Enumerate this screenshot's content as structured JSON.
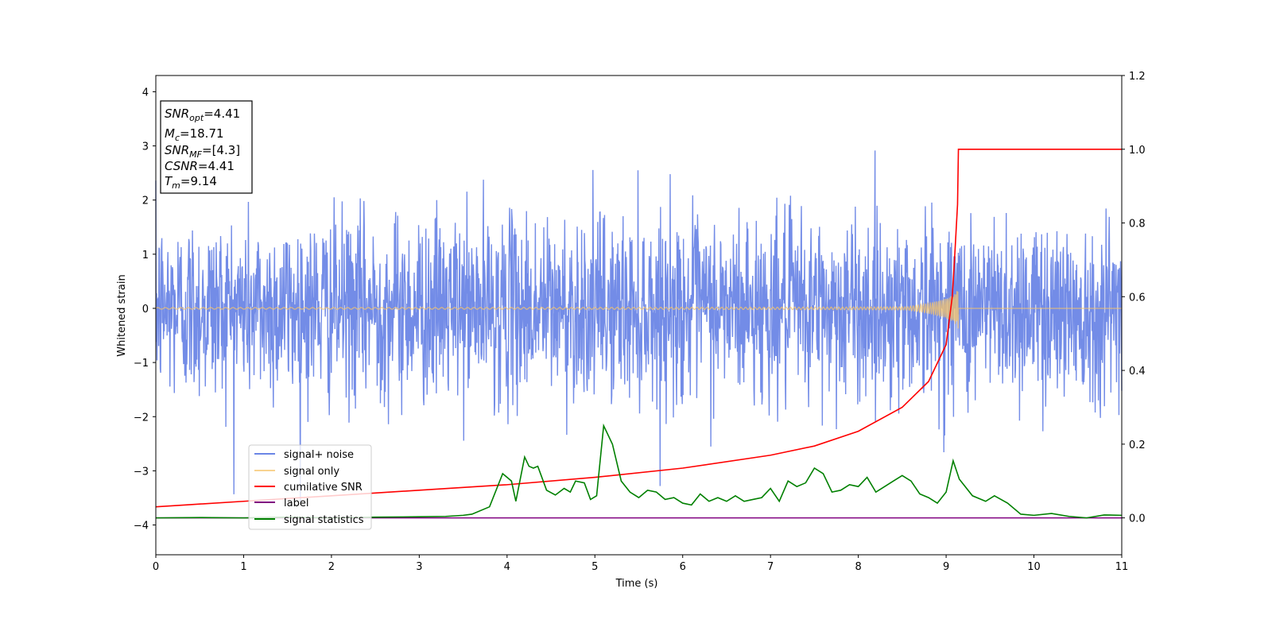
{
  "chart_data": {
    "type": "line",
    "xlabel": "Time (s)",
    "ylabel": "Whitened strain",
    "xlim": [
      0,
      11
    ],
    "ylim_left": [
      -4.55,
      4.3
    ],
    "ylim_right": [
      -0.1,
      1.2
    ],
    "x_ticks": [
      0,
      1,
      2,
      3,
      4,
      5,
      6,
      7,
      8,
      9,
      10,
      11
    ],
    "y_ticks_left": [
      4,
      3,
      2,
      1,
      0,
      -1,
      -2,
      -3,
      -4
    ],
    "y_ticks_right": [
      "1.2",
      "1.0",
      "0.8",
      "0.6",
      "0.4",
      "0.2",
      "0.0"
    ],
    "grid": false,
    "legend_position": "lower-left",
    "annotation": {
      "lines": [
        {
          "main": "SNR",
          "sub": "opt",
          "value": "=4.41"
        },
        {
          "main": "M",
          "sub": "c",
          "value": "=18.71"
        },
        {
          "main": "SNR",
          "sub": "MF",
          "value": "=[4.3]"
        },
        {
          "main": "CSNR",
          "sub": "",
          "value": "=4.41"
        },
        {
          "main": "T",
          "sub": "m",
          "value": "=9.14"
        }
      ]
    },
    "merger_time": 9.14,
    "series": [
      {
        "name": "signal+ noise",
        "color": "#6b86e6",
        "axis": "left",
        "description_kind": "noise",
        "sigma": 0.85,
        "peak_abs": 4.15
      },
      {
        "name": "signal only",
        "color": "#f5c46b",
        "axis": "left",
        "description_kind": "chirp",
        "amplitude_start": 0.015,
        "amplitude_peak": 0.88,
        "t_end": 9.14
      },
      {
        "name": "cumilative SNR",
        "color": "#ff0000",
        "axis": "right",
        "points": [
          [
            0,
            0.03
          ],
          [
            1,
            0.045
          ],
          [
            2,
            0.06
          ],
          [
            3,
            0.075
          ],
          [
            4,
            0.09
          ],
          [
            5,
            0.11
          ],
          [
            6,
            0.135
          ],
          [
            7,
            0.17
          ],
          [
            7.5,
            0.195
          ],
          [
            8,
            0.235
          ],
          [
            8.5,
            0.3
          ],
          [
            8.8,
            0.37
          ],
          [
            9.0,
            0.47
          ],
          [
            9.07,
            0.6
          ],
          [
            9.1,
            0.72
          ],
          [
            9.13,
            0.85
          ],
          [
            9.14,
            1.0
          ],
          [
            11,
            1.0
          ]
        ]
      },
      {
        "name": "label",
        "color": "#800080",
        "axis": "right",
        "points": [
          [
            0,
            0.0
          ],
          [
            11,
            0.0
          ]
        ]
      },
      {
        "name": "signal statistics",
        "color": "#008000",
        "axis": "right",
        "points": [
          [
            0,
            0.0
          ],
          [
            0.5,
            0.001
          ],
          [
            1.0,
            0.0
          ],
          [
            1.5,
            0.002
          ],
          [
            2.0,
            0.0
          ],
          [
            2.5,
            0.002
          ],
          [
            3.0,
            0.003
          ],
          [
            3.3,
            0.004
          ],
          [
            3.5,
            0.007
          ],
          [
            3.6,
            0.01
          ],
          [
            3.8,
            0.03
          ],
          [
            3.95,
            0.12
          ],
          [
            4.05,
            0.1
          ],
          [
            4.1,
            0.045
          ],
          [
            4.2,
            0.165
          ],
          [
            4.25,
            0.14
          ],
          [
            4.3,
            0.135
          ],
          [
            4.35,
            0.14
          ],
          [
            4.45,
            0.075
          ],
          [
            4.55,
            0.062
          ],
          [
            4.65,
            0.08
          ],
          [
            4.72,
            0.07
          ],
          [
            4.78,
            0.1
          ],
          [
            4.88,
            0.095
          ],
          [
            4.95,
            0.05
          ],
          [
            5.02,
            0.06
          ],
          [
            5.1,
            0.25
          ],
          [
            5.2,
            0.2
          ],
          [
            5.3,
            0.1
          ],
          [
            5.4,
            0.07
          ],
          [
            5.5,
            0.055
          ],
          [
            5.6,
            0.075
          ],
          [
            5.7,
            0.07
          ],
          [
            5.8,
            0.05
          ],
          [
            5.9,
            0.055
          ],
          [
            6.0,
            0.04
          ],
          [
            6.1,
            0.035
          ],
          [
            6.2,
            0.065
          ],
          [
            6.3,
            0.045
          ],
          [
            6.4,
            0.055
          ],
          [
            6.5,
            0.045
          ],
          [
            6.6,
            0.06
          ],
          [
            6.7,
            0.045
          ],
          [
            6.8,
            0.05
          ],
          [
            6.9,
            0.055
          ],
          [
            7.0,
            0.08
          ],
          [
            7.1,
            0.045
          ],
          [
            7.2,
            0.1
          ],
          [
            7.3,
            0.085
          ],
          [
            7.4,
            0.095
          ],
          [
            7.5,
            0.135
          ],
          [
            7.6,
            0.12
          ],
          [
            7.7,
            0.07
          ],
          [
            7.8,
            0.075
          ],
          [
            7.9,
            0.09
          ],
          [
            8.0,
            0.085
          ],
          [
            8.1,
            0.11
          ],
          [
            8.2,
            0.07
          ],
          [
            8.3,
            0.085
          ],
          [
            8.4,
            0.1
          ],
          [
            8.5,
            0.115
          ],
          [
            8.6,
            0.1
          ],
          [
            8.7,
            0.065
          ],
          [
            8.8,
            0.055
          ],
          [
            8.9,
            0.04
          ],
          [
            9.0,
            0.07
          ],
          [
            9.08,
            0.155
          ],
          [
            9.15,
            0.105
          ],
          [
            9.3,
            0.06
          ],
          [
            9.45,
            0.045
          ],
          [
            9.55,
            0.06
          ],
          [
            9.7,
            0.04
          ],
          [
            9.85,
            0.01
          ],
          [
            10.0,
            0.007
          ],
          [
            10.2,
            0.012
          ],
          [
            10.4,
            0.004
          ],
          [
            10.6,
            0.0
          ],
          [
            10.8,
            0.008
          ],
          [
            11.0,
            0.007
          ]
        ]
      }
    ]
  }
}
